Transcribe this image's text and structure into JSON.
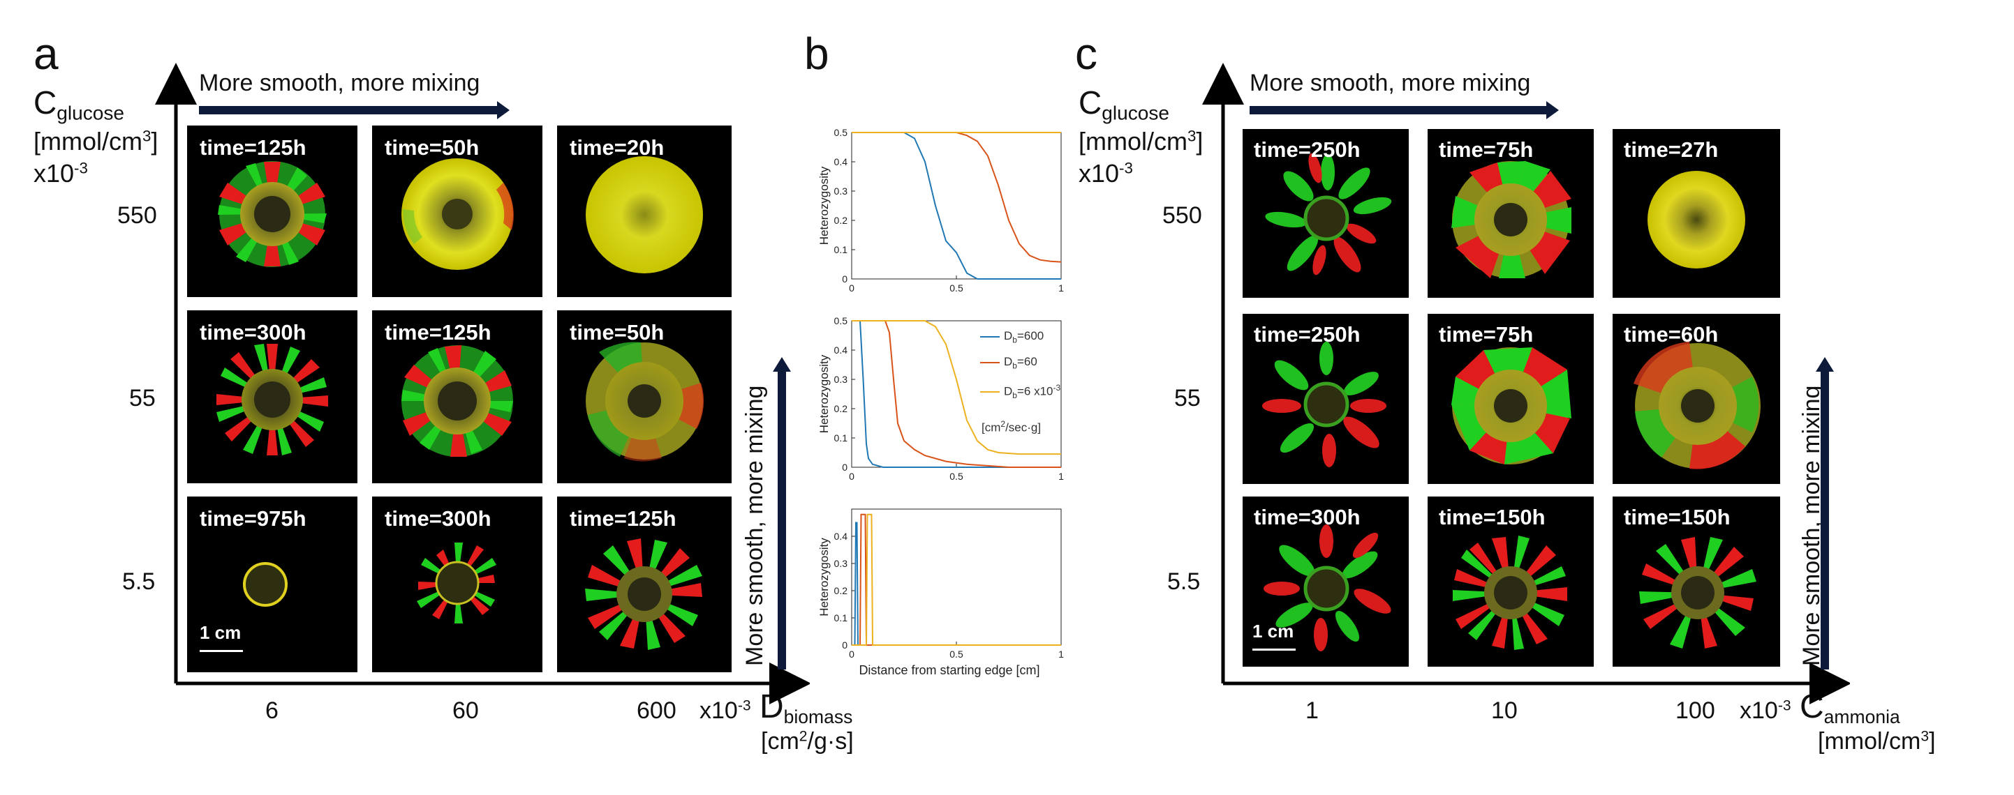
{
  "panel_a": {
    "letter": "a",
    "y_label_main": "C",
    "y_label_sub": "glucose",
    "y_units_pre": "[mmol/cm",
    "y_units_sup": "3",
    "y_units_post": "]",
    "y_scale_pre": "x10",
    "y_scale_sup": "-3",
    "y_ticks": [
      "550",
      "55",
      "5.5"
    ],
    "x_ticks": [
      "6",
      "60",
      "600"
    ],
    "x_scale_pre": "x10",
    "x_scale_sup": "-3",
    "x_label_main": "D",
    "x_label_sub": "biomass",
    "x_units_pre": "[cm",
    "x_units_sup": "2",
    "x_units_post": "/g·s]",
    "top_arrow_text": "More smooth, more mixing",
    "side_arrow_text": "More smooth, more mixing",
    "scalebar": "1 cm",
    "tiles": [
      [
        "time=125h",
        "time=50h",
        "time=20h"
      ],
      [
        "time=300h",
        "time=125h",
        "time=50h"
      ],
      [
        "time=975h",
        "time=300h",
        "time=125h"
      ]
    ]
  },
  "panel_b": {
    "letter": "b",
    "y_label": "Heterozygosity",
    "x_label": "Distance from starting edge [cm]",
    "legend": [
      "D",
      "b",
      "=600",
      "=60",
      "=6 x10",
      "-3",
      "[cm",
      "2",
      "/sec·g]"
    ],
    "tick_labels_x": [
      "0",
      "0.5",
      "1"
    ],
    "tick_labels_y_top": [
      "0",
      "0.1",
      "0.2",
      "0.3",
      "0.4",
      "0.5"
    ],
    "tick_labels_y_bottom": [
      "0",
      "0.1",
      "0.2",
      "0.3",
      "0.4"
    ]
  },
  "panel_c": {
    "letter": "c",
    "y_label_main": "C",
    "y_label_sub": "glucose",
    "y_units_pre": "[mmol/cm",
    "y_units_sup": "3",
    "y_units_post": "]",
    "y_scale_pre": "x10",
    "y_scale_sup": "-3",
    "y_ticks": [
      "550",
      "55",
      "5.5"
    ],
    "x_ticks": [
      "1",
      "10",
      "100"
    ],
    "x_scale_pre": "x10",
    "x_scale_sup": "-3",
    "x_label_main": "C",
    "x_label_sub": "ammonia",
    "x_units_pre": "[mmol/cm",
    "x_units_sup": "3",
    "x_units_post": "]",
    "top_arrow_text": "More smooth, more mixing",
    "side_arrow_text": "More smooth, more mixing",
    "scalebar": "1 cm",
    "tiles": [
      [
        "time=250h",
        "time=75h",
        "time=27h"
      ],
      [
        "time=250h",
        "time=75h",
        "time=60h"
      ],
      [
        "time=300h",
        "time=150h",
        "time=150h"
      ]
    ]
  },
  "chart_data": [
    {
      "type": "line",
      "xlabel": "",
      "ylabel": "Heterozygosity",
      "xlim": [
        0,
        1
      ],
      "ylim": [
        0,
        0.5
      ],
      "series": [
        {
          "color": "#1f77b4",
          "x": [
            0,
            0.25,
            0.3,
            0.35,
            0.4,
            0.45,
            0.5,
            0.55,
            0.6,
            1
          ],
          "y": [
            0.5,
            0.5,
            0.48,
            0.4,
            0.25,
            0.13,
            0.09,
            0.02,
            0.0,
            0.0
          ]
        },
        {
          "color": "#d95319",
          "x": [
            0,
            0.5,
            0.55,
            0.6,
            0.65,
            0.7,
            0.75,
            0.8,
            0.85,
            0.9,
            0.95,
            1
          ],
          "y": [
            0.5,
            0.5,
            0.49,
            0.47,
            0.42,
            0.32,
            0.2,
            0.12,
            0.08,
            0.065,
            0.06,
            0.058
          ]
        },
        {
          "color": "#edb120",
          "x": [
            0,
            1
          ],
          "y": [
            0.5,
            0.5
          ]
        }
      ]
    },
    {
      "type": "line",
      "xlabel": "",
      "ylabel": "Heterozygosity",
      "xlim": [
        0,
        1
      ],
      "ylim": [
        0,
        0.5
      ],
      "series": [
        {
          "name": "=600",
          "color": "#1f77b4",
          "x": [
            0,
            0.04,
            0.055,
            0.07,
            0.08,
            0.1,
            0.15,
            1
          ],
          "y": [
            0.5,
            0.5,
            0.3,
            0.08,
            0.03,
            0.01,
            0.0,
            0.0
          ]
        },
        {
          "name": "=60",
          "color": "#d95319",
          "x": [
            0,
            0.16,
            0.18,
            0.2,
            0.22,
            0.25,
            0.3,
            0.35,
            0.45,
            0.55,
            0.65,
            0.75,
            1
          ],
          "y": [
            0.5,
            0.5,
            0.46,
            0.3,
            0.15,
            0.09,
            0.06,
            0.04,
            0.02,
            0.01,
            0.005,
            0.0,
            0.0
          ]
        },
        {
          "name": "=6 x10-3",
          "color": "#edb120",
          "x": [
            0,
            0.35,
            0.4,
            0.45,
            0.5,
            0.55,
            0.6,
            0.65,
            0.7,
            0.8,
            1
          ],
          "y": [
            0.5,
            0.5,
            0.48,
            0.42,
            0.3,
            0.16,
            0.09,
            0.06,
            0.05,
            0.045,
            0.045
          ]
        }
      ]
    },
    {
      "type": "line",
      "xlabel": "Distance from starting edge [cm]",
      "ylabel": "Heterozygosity",
      "xlim": [
        0,
        1
      ],
      "ylim": [
        0,
        0.5
      ],
      "series": [
        {
          "color": "#1f77b4",
          "x": [
            0,
            0.015,
            0.02,
            0.025,
            0.03,
            1
          ],
          "y": [
            0.0,
            0.0,
            0.45,
            0.45,
            0.0,
            0.0
          ]
        },
        {
          "color": "#d95319",
          "x": [
            0,
            0.04,
            0.045,
            0.065,
            0.07,
            1
          ],
          "y": [
            0.0,
            0.0,
            0.48,
            0.48,
            0.0,
            0.0
          ]
        },
        {
          "color": "#edb120",
          "x": [
            0,
            0.07,
            0.075,
            0.095,
            0.1,
            1
          ],
          "y": [
            0.0,
            0.0,
            0.48,
            0.48,
            0.0,
            0.0
          ]
        }
      ]
    }
  ]
}
